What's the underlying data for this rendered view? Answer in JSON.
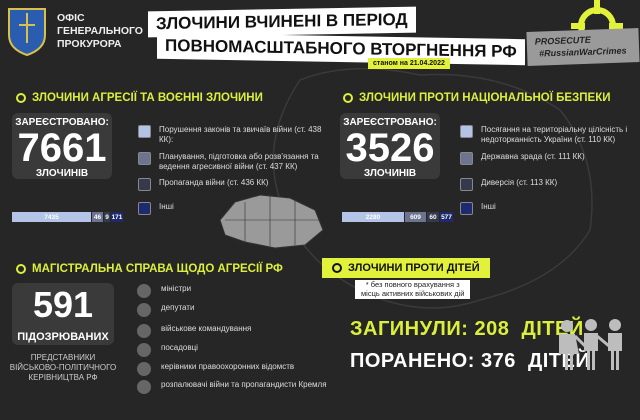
{
  "header": {
    "org": [
      "ОФІС",
      "ГЕНЕРАЛЬНОГО",
      "ПРОКУРОРА"
    ],
    "title_line1": "ЗЛОЧИНИ ВЧИНЕНІ В ПЕРІОД",
    "title_line2": "ПОВНОМАСШТАБНОГО ВТОРГНЕННЯ РФ",
    "date": "станом на 21.04.2022",
    "badge_line1": "PROSECUTE",
    "badge_line2": "#RussianWarCrimes"
  },
  "colors": {
    "accent": "#dcef3a",
    "background": "#262626",
    "seg1": "#b4c4e6",
    "seg2": "#6c7490",
    "seg3": "#343a4c",
    "seg4": "#1f2a6e"
  },
  "aggression": {
    "heading": "ЗЛОЧИНИ АГРЕСІЇ ТА ВОЄННІ ЗЛОЧИНИ",
    "label": "ЗАРЕЄСТРОВАНО:",
    "count": "7661",
    "unit": "ЗЛОЧИНІВ",
    "legend": [
      "Порушення законів та звичаїв війни (ст. 438 КК):",
      "Планування, підготовка або розв'язання та ведення агресивної війни (ст. 437 КК)",
      "Пропаганда війни (ст. 436 КК)",
      "Інші"
    ],
    "bar": [
      "7435",
      "46",
      "9",
      "171"
    ]
  },
  "security": {
    "heading": "ЗЛОЧИНИ ПРОТИ НАЦІОНАЛЬНОЇ БЕЗПЕКИ",
    "label": "ЗАРЕЄСТРОВАНО:",
    "count": "3526",
    "unit": "ЗЛОЧИНІВ",
    "legend": [
      "Посягання на територіальну цілісність і недоторканність України (ст. 110 КК)",
      "Державна зрада (ст. 111 КК)",
      "Диверсія (ст. 113 КК)",
      "Інші"
    ],
    "bar": [
      "2280",
      "609",
      "60",
      "577"
    ]
  },
  "main_case": {
    "heading": "МАГІСТРАЛЬНА СПРАВА ЩОДО АГРЕСІЇ РФ",
    "count": "591",
    "unit": "ПІДОЗРЮВАНИХ",
    "note": [
      "ПРЕДСТАВНИКИ",
      "ВІЙСЬКОВО-ПОЛІТИЧНОГО",
      "КЕРІВНИЦТВА РФ"
    ],
    "items": [
      "міністри",
      "депутати",
      "військове командування",
      "посадовці",
      "керівники правоохоронних відомств",
      "розпалювачі війни та пропагандисти Кремля"
    ]
  },
  "children": {
    "heading": "ЗЛОЧИНИ ПРОТИ ДІТЕЙ",
    "note": [
      "* без повного врахування з",
      "місць активних військових дій"
    ],
    "killed_label": "ЗАГИНУЛИ:",
    "killed": "208",
    "killed_unit": "ДІТЕЙ",
    "injured_label": "ПОРАНЕНО:",
    "injured": "376",
    "injured_unit": "ДІТЕЙ"
  }
}
